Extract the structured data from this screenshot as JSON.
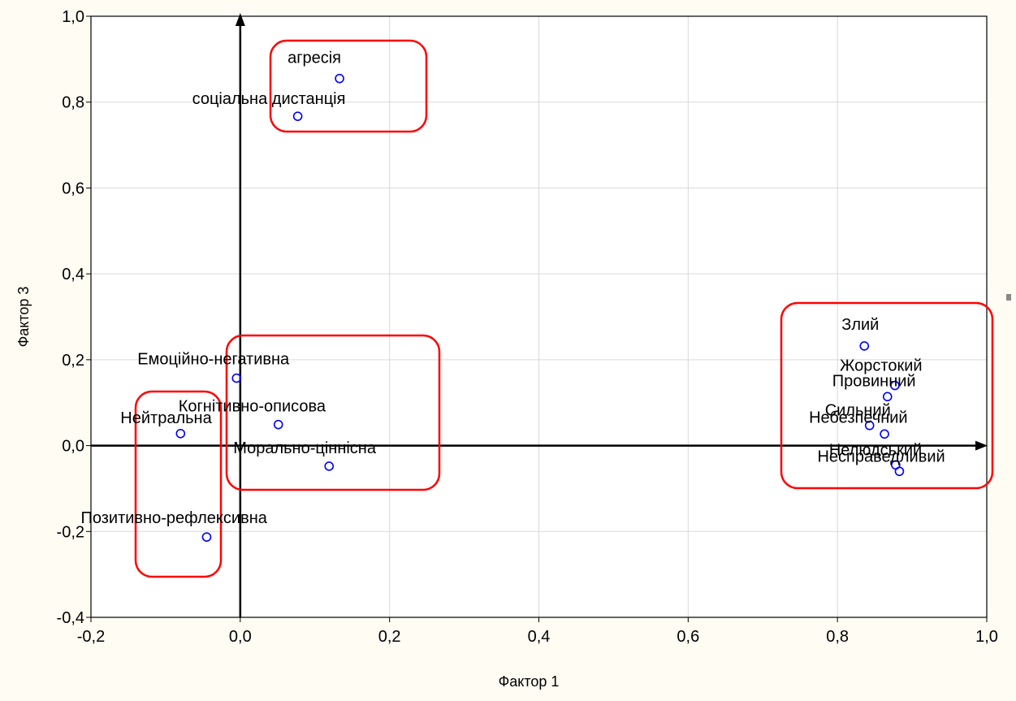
{
  "chart_data": {
    "type": "scatter",
    "xlabel": "Фактор 1",
    "ylabel": "Фактор 3",
    "xlim": [
      -0.2,
      1.0
    ],
    "ylim": [
      -0.4,
      1.0
    ],
    "xticks": [
      "-0,2",
      "0,0",
      "0,2",
      "0,4",
      "0,6",
      "0,8",
      "1,0"
    ],
    "yticks": [
      "-0,4",
      "-0,2",
      "0,0",
      "0,2",
      "0,4",
      "0,6",
      "0,8",
      "1,0"
    ],
    "xtick_values": [
      -0.2,
      0.0,
      0.2,
      0.4,
      0.6,
      0.8,
      1.0
    ],
    "ytick_values": [
      -0.4,
      -0.2,
      0.0,
      0.2,
      0.4,
      0.6,
      0.8,
      1.0
    ],
    "grid": true,
    "points": [
      {
        "label": "агресія",
        "x": 0.133,
        "y": 0.855
      },
      {
        "label": "соціальна дистанція",
        "x": 0.077,
        "y": 0.767
      },
      {
        "label": "Емоційно-негативна",
        "x": -0.005,
        "y": 0.157
      },
      {
        "label": "Когнітивно-описова",
        "x": 0.051,
        "y": 0.049
      },
      {
        "label": "Нейтральна",
        "x": -0.08,
        "y": 0.028
      },
      {
        "label": "Морально-ціннісна",
        "x": 0.119,
        "y": -0.048
      },
      {
        "label": "Позитивно-рефлексивна",
        "x": -0.045,
        "y": -0.213
      },
      {
        "label": "Злий",
        "x": 0.836,
        "y": 0.232
      },
      {
        "label": "Жорстокий",
        "x": 0.877,
        "y": 0.14
      },
      {
        "label": "Провинний",
        "x": 0.867,
        "y": 0.114
      },
      {
        "label": "Сильний",
        "x": 0.843,
        "y": 0.047
      },
      {
        "label": "Небезпечний",
        "x": 0.863,
        "y": 0.027
      },
      {
        "label": "Нелюдський",
        "x": 0.878,
        "y": -0.045
      },
      {
        "label": "Несправедливий",
        "x": 0.883,
        "y": -0.06
      }
    ],
    "groups": [
      "top-cluster",
      "center-cluster",
      "left-cluster",
      "right-cluster"
    ],
    "colors": {
      "marker": "#0000ff",
      "group_box": "#ff0000",
      "axis": "#000000",
      "grid": "#d9d9d9",
      "background": "#fffcf3"
    }
  }
}
